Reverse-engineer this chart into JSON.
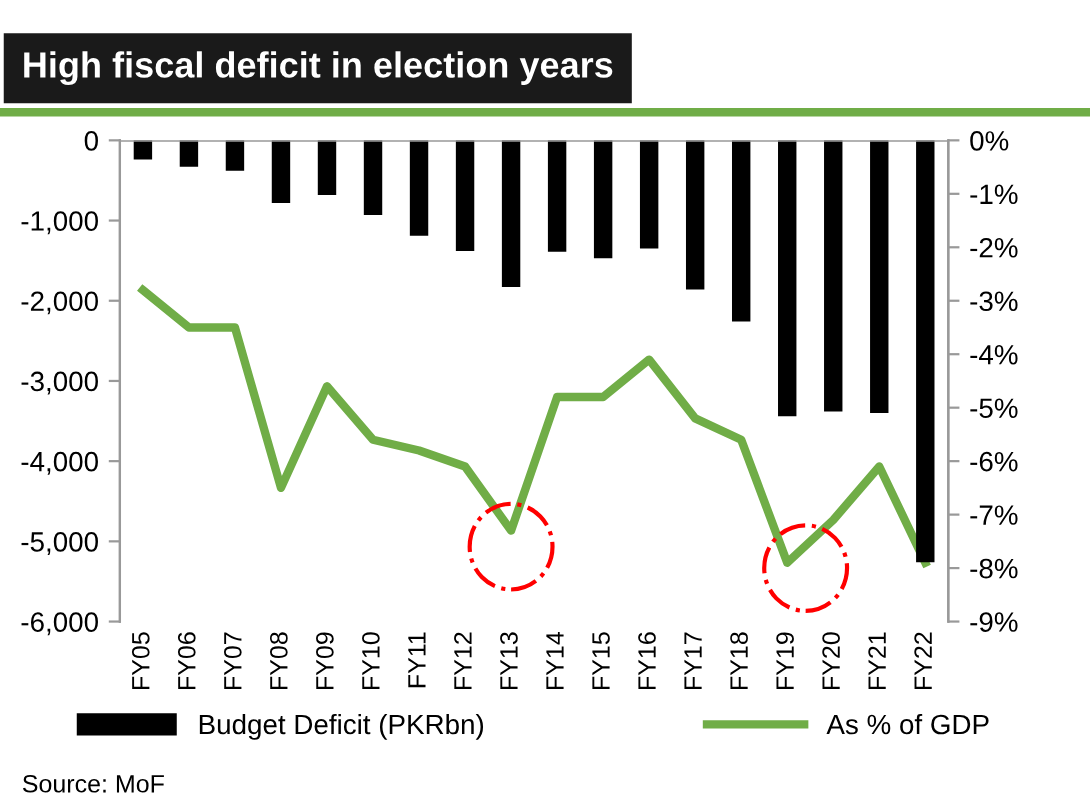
{
  "chart_data": {
    "type": "bar",
    "title": "High fiscal deficit in election years",
    "categories": [
      "FY05",
      "FY06",
      "FY07",
      "FY08",
      "FY09",
      "FY10",
      "FY11",
      "FY12",
      "FY13",
      "FY14",
      "FY15",
      "FY16",
      "FY17",
      "FY18",
      "FY19",
      "FY20",
      "FY21",
      "FY22"
    ],
    "series": [
      {
        "name": "Budget Deficit (PKRbn)",
        "color": "#000000",
        "values": [
          -240,
          -330,
          -380,
          -780,
          -680,
          -930,
          -1190,
          -1380,
          -1830,
          -1390,
          -1470,
          -1350,
          -1860,
          -2260,
          -3440,
          -3380,
          -3400,
          -5260
        ]
      },
      {
        "name": "As % of GDP",
        "type": "line",
        "axis": "y2",
        "color": "#70ad47",
        "values": [
          -2.8,
          -3.5,
          -3.5,
          -6.5,
          -4.6,
          -5.6,
          -5.8,
          -6.1,
          -7.3,
          -4.8,
          -4.8,
          -4.1,
          -5.2,
          -5.6,
          -7.9,
          -7.1,
          -6.1,
          -7.9
        ]
      }
    ],
    "ylim": [
      -6000,
      0
    ],
    "yticks": [
      {
        "value": -6000,
        "label": "-6,000"
      },
      {
        "value": -5000,
        "label": "-5,000"
      },
      {
        "value": -4000,
        "label": "-4,000"
      },
      {
        "value": -3000,
        "label": "-3,000"
      },
      {
        "value": -2000,
        "label": "-2,000"
      },
      {
        "value": -1000,
        "label": "-1,000"
      },
      0
    ],
    "y2lim": [
      -9,
      0
    ],
    "y2ticks": [
      {
        "value": -9,
        "label": "-9%"
      },
      {
        "value": -8,
        "label": "-8%"
      },
      {
        "value": -7,
        "label": "-7%"
      },
      {
        "value": -6,
        "label": "-6%"
      },
      {
        "value": -5,
        "label": "-5%"
      },
      {
        "value": -4,
        "label": "-4%"
      },
      {
        "value": -3,
        "label": "-3%"
      },
      {
        "value": -2,
        "label": "-2%"
      },
      {
        "value": -1,
        "label": "-1%"
      },
      {
        "value": 0,
        "label": "0%"
      }
    ],
    "legend": "bottom",
    "grid": false,
    "marker": "none",
    "line_style": "solid",
    "annotations": [
      "Source: MoF"
    ]
  }
}
